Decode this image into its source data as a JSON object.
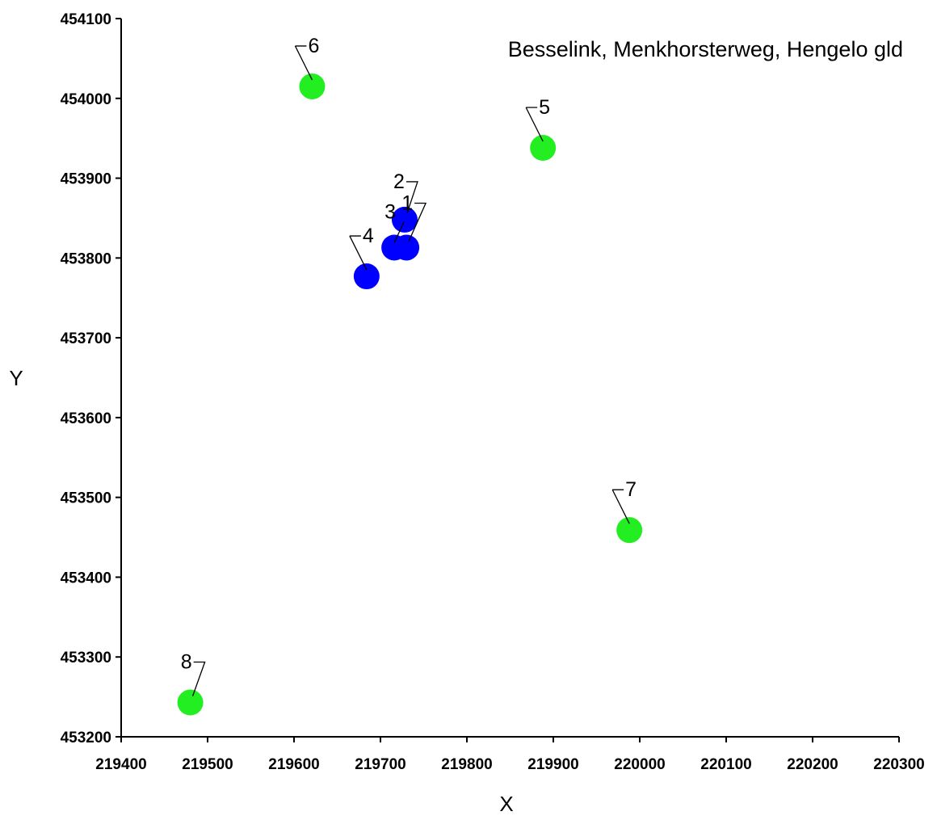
{
  "chart_data": {
    "type": "scatter",
    "title": "Besselink, Menkhorsterweg, Hengelo gld",
    "xlabel": "X",
    "ylabel": "Y",
    "xlim": [
      219400,
      220300
    ],
    "ylim": [
      453200,
      454100
    ],
    "x_ticks": [
      219400,
      219500,
      219600,
      219700,
      219800,
      219900,
      220000,
      220100,
      220200,
      220300
    ],
    "y_ticks": [
      453200,
      453300,
      453400,
      453500,
      453600,
      453700,
      453800,
      453900,
      454000,
      454100
    ],
    "x_tick_labels": [
      "219400",
      "219500",
      "219600",
      "219700",
      "219800",
      "219900",
      "220000",
      "220100",
      "220200",
      "220300"
    ],
    "y_tick_labels": [
      "453200",
      "453300",
      "453400",
      "453500",
      "453600",
      "453700",
      "453800",
      "453900",
      "454000",
      "454100"
    ],
    "grid": false,
    "legend": "none",
    "colors": {
      "blue": "#0000ff",
      "green": "#22ee22"
    },
    "series": [
      {
        "color": "#0000ff",
        "points": [
          {
            "label": "1",
            "x": 219730,
            "y": 453813
          },
          {
            "label": "2",
            "x": 219728,
            "y": 453848
          },
          {
            "label": "3",
            "x": 219716,
            "y": 453813
          },
          {
            "label": "4",
            "x": 219684,
            "y": 453777
          }
        ]
      },
      {
        "color": "#22ee22",
        "points": [
          {
            "label": "5",
            "x": 219888,
            "y": 453938
          },
          {
            "label": "6",
            "x": 219621,
            "y": 454015
          },
          {
            "label": "7",
            "x": 219988,
            "y": 453459
          },
          {
            "label": "8",
            "x": 219480,
            "y": 453243
          }
        ]
      }
    ]
  }
}
